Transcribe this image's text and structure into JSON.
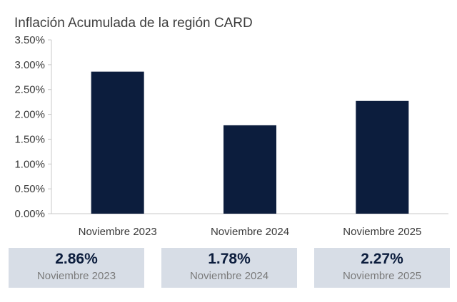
{
  "chart_data": {
    "type": "bar",
    "title": "Inflación Acumulada de la región CARD",
    "categories": [
      "Noviembre 2023",
      "Noviembre 2024",
      "Noviembre 2025"
    ],
    "values": [
      2.86,
      1.78,
      2.27
    ],
    "ylim": [
      0,
      3.5
    ],
    "yticks": [
      "0.00%",
      "0.50%",
      "1.00%",
      "1.50%",
      "2.00%",
      "2.50%",
      "3.00%",
      "3.50%"
    ],
    "xlabel": "",
    "ylabel": "",
    "grid": false,
    "bar_color": "#0c1d3d"
  },
  "cards": [
    {
      "value": "2.86%",
      "label": "Noviembre 2023"
    },
    {
      "value": "1.78%",
      "label": "Noviembre 2024"
    },
    {
      "value": "2.27%",
      "label": "Noviembre 2025"
    }
  ],
  "colors": {
    "card_background": "#d7dde6",
    "card_value": "#0c1d3d",
    "card_label": "#7a7a7a"
  }
}
